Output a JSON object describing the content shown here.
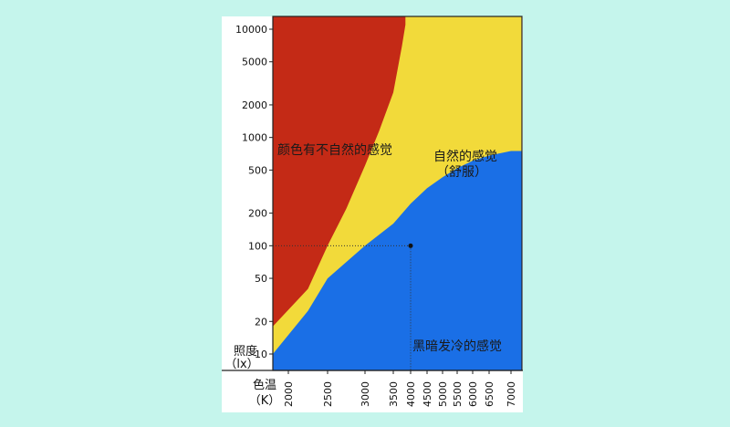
{
  "chart_data": {
    "type": "area",
    "y_axis": {
      "label_line1": "照度",
      "label_line2": "（lx）",
      "scale": "log",
      "ticks": [
        10,
        20,
        50,
        100,
        200,
        500,
        1000,
        2000,
        5000,
        10000
      ],
      "range": [
        7,
        11000
      ]
    },
    "x_axis": {
      "label_line1": "色温",
      "label_line2": "（K）",
      "ticks": [
        2000,
        2500,
        3000,
        3500,
        4000,
        4500,
        5000,
        5500,
        6000,
        6500,
        7000
      ]
    },
    "regions": [
      {
        "label": "颜色有不自然的感觉",
        "color": "#c42a16"
      },
      {
        "label_line1": "自然的感觉",
        "label_line2": "（舒服）",
        "color": "#f2da3a"
      },
      {
        "label": "黑暗发冷的感觉",
        "color": "#1a6fe6"
      }
    ],
    "upper_boundary": {
      "x": [
        2000,
        2250,
        2500,
        2750,
        3000,
        3250,
        3500,
        3750,
        3850
      ],
      "y": [
        18,
        40,
        100,
        220,
        550,
        1150,
        2600,
        7000,
        11000
      ]
    },
    "lower_boundary": {
      "x": [
        2000,
        2250,
        2500,
        3000,
        3500,
        4000,
        4500,
        5000,
        5500,
        6000,
        6500,
        7000
      ],
      "y": [
        10,
        25,
        50,
        100,
        160,
        245,
        340,
        430,
        520,
        610,
        680,
        750
      ]
    },
    "reference_point": {
      "x": 4000,
      "y": 100
    }
  }
}
